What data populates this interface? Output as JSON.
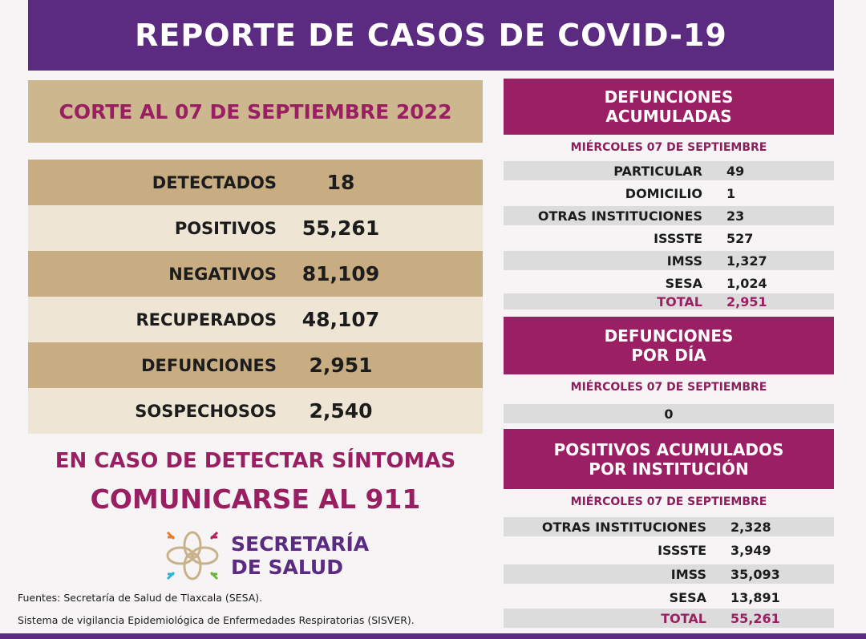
{
  "title": "REPORTE DE CASOS DE COVID-19",
  "corte": "CORTE AL 07 DE SEPTIEMBRE 2022",
  "summary": [
    {
      "label": "DETECTADOS",
      "value": "18"
    },
    {
      "label": "POSITIVOS",
      "value": "55,261"
    },
    {
      "label": "NEGATIVOS",
      "value": "81,109"
    },
    {
      "label": "RECUPERADOS",
      "value": "48,107"
    },
    {
      "label": "DEFUNCIONES",
      "value": "2,951"
    },
    {
      "label": "SOSPECHOSOS",
      "value": "2,540"
    }
  ],
  "defunciones_acumuladas": {
    "title_1": "DEFUNCIONES",
    "title_2": "ACUMULADAS",
    "date": "MIÉRCOLES 07 DE SEPTIEMBRE",
    "rows": [
      {
        "label": "PARTICULAR",
        "value": "49"
      },
      {
        "label": "DOMICILIO",
        "value": "1"
      },
      {
        "label": "OTRAS INSTITUCIONES",
        "value": "23"
      },
      {
        "label": "ISSSTE",
        "value": "527"
      },
      {
        "label": "IMSS",
        "value": "1,327"
      },
      {
        "label": "SESA",
        "value": "1,024"
      },
      {
        "label": "TOTAL",
        "value": "2,951"
      }
    ]
  },
  "defunciones_dia": {
    "title_1": "DEFUNCIONES",
    "title_2": "POR DÍA",
    "date": "MIÉRCOLES 07 DE SEPTIEMBRE",
    "value": "0"
  },
  "positivos_institucion": {
    "title_1": "POSITIVOS ACUMULADOS",
    "title_2": "POR INSTITUCIÓN",
    "date": "MIÉRCOLES 07 DE SEPTIEMBRE",
    "rows": [
      {
        "label": "OTRAS INSTITUCIONES",
        "value": "2,328"
      },
      {
        "label": "ISSSTE",
        "value": "3,949"
      },
      {
        "label": "IMSS",
        "value": "35,093"
      },
      {
        "label": "SESA",
        "value": "13,891"
      },
      {
        "label": "TOTAL",
        "value": "55,261"
      }
    ]
  },
  "cta_1": "EN CASO DE DETECTAR SÍNTOMAS",
  "cta_2": "COMUNICARSE AL 911",
  "logo": {
    "line_1": "SECRETARÍA",
    "line_2": "DE SALUD"
  },
  "sources": {
    "line_1": "Fuentes:  Secretaría de Salud de Tlaxcala (SESA).",
    "line_2": "Sistema de vigilancia Epidemiológica de Enfermedades Respiratorias (SISVER)."
  },
  "colors": {
    "purple": "#5a2b80",
    "magenta": "#9b1f63",
    "tan": "#c8ad83",
    "beige": "#efe5d5"
  }
}
